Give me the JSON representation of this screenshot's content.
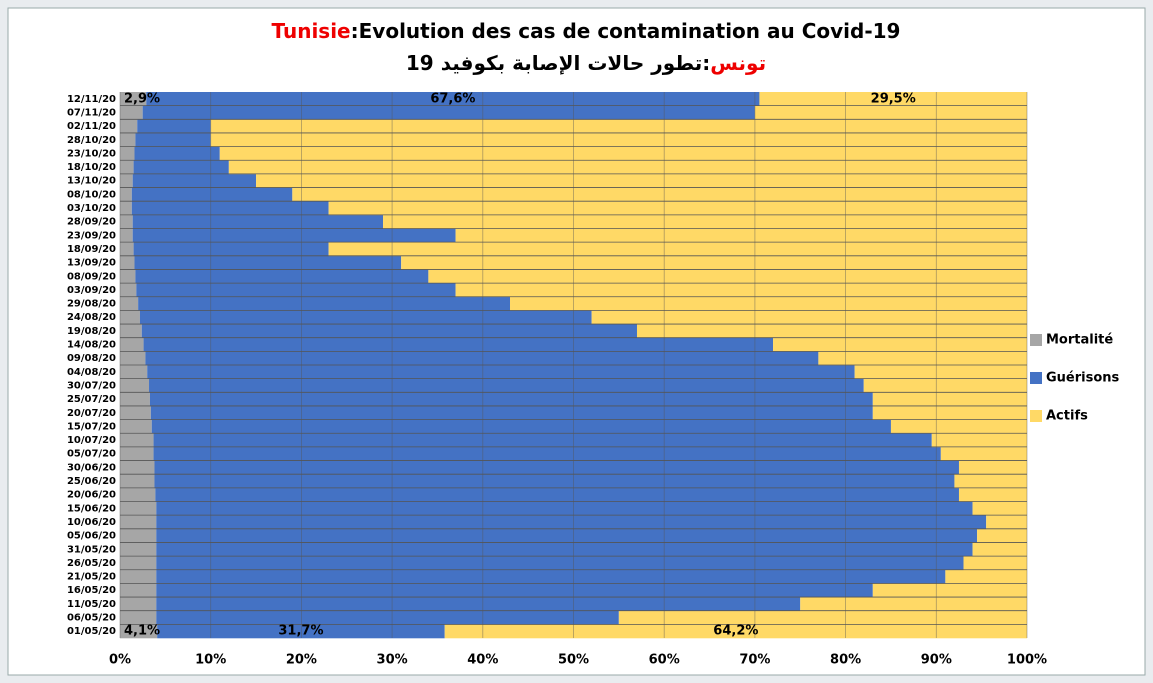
{
  "chart_data": {
    "type": "stacked-barh",
    "title": {
      "highlight": "Tunisie",
      "text": ":Evolution des cas de contamination au Covid-19"
    },
    "subtitle": {
      "highlight": "تونس",
      "text": ":تطور حالات الإصابة بكوفيد 19"
    },
    "categories": [
      "01/05/20",
      "06/05/20",
      "11/05/20",
      "16/05/20",
      "21/05/20",
      "26/05/20",
      "31/05/20",
      "05/06/20",
      "10/06/20",
      "15/06/20",
      "20/06/20",
      "25/06/20",
      "30/06/20",
      "05/07/20",
      "10/07/20",
      "15/07/20",
      "20/07/20",
      "25/07/20",
      "30/07/20",
      "04/08/20",
      "09/08/20",
      "14/08/20",
      "19/08/20",
      "24/08/20",
      "29/08/20",
      "03/09/20",
      "08/09/20",
      "13/09/20",
      "18/09/20",
      "23/09/20",
      "28/09/20",
      "03/10/20",
      "08/10/20",
      "13/10/20",
      "18/10/20",
      "23/10/20",
      "28/10/20",
      "02/11/20",
      "07/11/20",
      "12/11/20"
    ],
    "series": [
      {
        "name": "Mortalité",
        "color": "#a6a6a6",
        "values": [
          4.1,
          4,
          4,
          4,
          4,
          4,
          4,
          4,
          4,
          4,
          3.9,
          3.8,
          3.8,
          3.7,
          3.7,
          3.5,
          3.4,
          3.3,
          3.2,
          3,
          2.8,
          2.6,
          2.4,
          2.2,
          2,
          1.8,
          1.7,
          1.6,
          1.5,
          1.4,
          1.4,
          1.3,
          1.3,
          1.4,
          1.5,
          1.6,
          1.7,
          1.9,
          2.5,
          2.9
        ],
        "value_labels": [
          "4,1%",
          null,
          null,
          null,
          null,
          null,
          null,
          null,
          null,
          null,
          null,
          null,
          null,
          null,
          null,
          null,
          null,
          null,
          null,
          null,
          null,
          null,
          null,
          null,
          null,
          null,
          null,
          null,
          null,
          null,
          null,
          null,
          null,
          null,
          null,
          null,
          null,
          null,
          null,
          "2,9%"
        ]
      },
      {
        "name": "Guérisons",
        "color": "#4472c4",
        "values": [
          31.7,
          51,
          71,
          79,
          87,
          89,
          90,
          90.5,
          91.5,
          90,
          88.6,
          88.2,
          88.7,
          86.8,
          85.8,
          81.5,
          79.6,
          79.7,
          78.8,
          78,
          74.2,
          69.4,
          54.6,
          49.8,
          41,
          35.2,
          32.3,
          29.4,
          21.5,
          35.6,
          27.6,
          21.7,
          17.7,
          13.6,
          10.5,
          9.4,
          8.3,
          8.1,
          67.5,
          67.6
        ],
        "value_labels": [
          "31,7%",
          null,
          null,
          null,
          null,
          null,
          null,
          null,
          null,
          null,
          null,
          null,
          null,
          null,
          null,
          null,
          null,
          null,
          null,
          null,
          null,
          null,
          null,
          null,
          null,
          null,
          null,
          null,
          null,
          null,
          null,
          null,
          null,
          null,
          null,
          null,
          null,
          null,
          null,
          "67,6%"
        ]
      },
      {
        "name": "Actifs",
        "color": "#ffd966",
        "values": [
          64.2,
          45,
          25,
          17,
          9,
          7,
          6,
          5.5,
          4.5,
          6,
          7.5,
          8,
          7.5,
          9.5,
          10.5,
          15,
          17,
          17,
          18,
          19,
          23,
          28,
          43,
          48,
          57,
          63,
          66,
          69,
          77,
          63,
          71,
          77,
          81,
          85,
          88,
          89,
          90,
          90,
          30,
          29.5
        ],
        "value_labels": [
          "64,2%",
          null,
          null,
          null,
          null,
          null,
          null,
          null,
          null,
          null,
          null,
          null,
          null,
          null,
          null,
          null,
          null,
          null,
          null,
          null,
          null,
          null,
          null,
          null,
          null,
          null,
          null,
          null,
          null,
          null,
          null,
          null,
          null,
          null,
          null,
          null,
          null,
          null,
          null,
          "29,5%"
        ]
      }
    ],
    "xlim": [
      0,
      100
    ],
    "xticks": [
      {
        "value": 0,
        "label": "0%"
      },
      {
        "value": 10,
        "label": "10%"
      },
      {
        "value": 20,
        "label": "20%"
      },
      {
        "value": 30,
        "label": "30%"
      },
      {
        "value": 40,
        "label": "40%"
      },
      {
        "value": 50,
        "label": "50%"
      },
      {
        "value": 60,
        "label": "60%"
      },
      {
        "value": 70,
        "label": "70%"
      },
      {
        "value": 80,
        "label": "80%"
      },
      {
        "value": 90,
        "label": "90%"
      },
      {
        "value": 100,
        "label": "100%"
      }
    ],
    "grid": true,
    "legend": "right"
  }
}
